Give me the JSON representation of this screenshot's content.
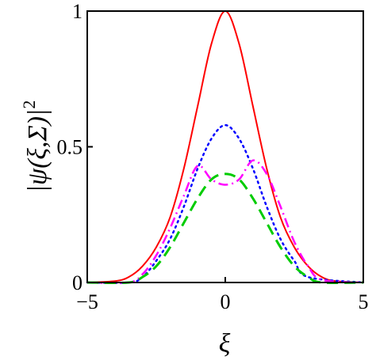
{
  "chart_data": {
    "type": "line",
    "xlabel": "ξ",
    "ylabel": "|ψ(ξ,Σ)|",
    "ylabel_exponent": "2",
    "xlim": [
      -5,
      5
    ],
    "ylim": [
      0,
      1
    ],
    "x_ticks": [
      -5,
      0,
      5
    ],
    "x_tick_labels": [
      "−5",
      "0",
      "5"
    ],
    "y_ticks": [
      0,
      0.5,
      1
    ],
    "y_tick_labels": [
      "0",
      "0.5",
      "1"
    ],
    "grid": false,
    "legend": "none",
    "series": [
      {
        "color": "#ff0000",
        "style": "solid",
        "x": [
          -5,
          -4,
          -3.5,
          -3,
          -2.5,
          -2,
          -1.5,
          -1,
          -0.5,
          0,
          0.5,
          1,
          1.5,
          2,
          2.5,
          3,
          3.5,
          4,
          5
        ],
        "y": [
          0,
          0.005,
          0.02,
          0.06,
          0.13,
          0.24,
          0.42,
          0.65,
          0.88,
          1.0,
          0.88,
          0.65,
          0.42,
          0.24,
          0.13,
          0.06,
          0.02,
          0.005,
          0
        ]
      },
      {
        "color": "#0000ff",
        "style": "dotted",
        "x": [
          -5,
          -3.5,
          -3,
          -2.5,
          -2,
          -1.5,
          -1,
          -0.5,
          0,
          0.5,
          1,
          1.5,
          2,
          2.5,
          3,
          5
        ],
        "y": [
          0,
          0,
          0.02,
          0.08,
          0.16,
          0.28,
          0.42,
          0.53,
          0.58,
          0.53,
          0.42,
          0.28,
          0.16,
          0.08,
          0.02,
          0
        ]
      },
      {
        "color": "#ff00ff",
        "style": "dashdot",
        "x": [
          -5,
          -3.5,
          -3,
          -2.5,
          -2,
          -1.5,
          -1,
          -0.5,
          0,
          0.5,
          1,
          1.5,
          2,
          2.5,
          3,
          3.5,
          5
        ],
        "y": [
          0,
          0,
          0.03,
          0.1,
          0.2,
          0.32,
          0.43,
          0.38,
          0.36,
          0.38,
          0.45,
          0.4,
          0.28,
          0.15,
          0.06,
          0.01,
          0
        ]
      },
      {
        "color": "#00cc00",
        "style": "dashed",
        "x": [
          -5,
          -3.5,
          -3,
          -2.5,
          -2,
          -1.5,
          -1,
          -0.5,
          0,
          0.5,
          1,
          1.5,
          2,
          2.5,
          3,
          3.5,
          5
        ],
        "y": [
          0,
          0,
          0.02,
          0.06,
          0.13,
          0.22,
          0.31,
          0.38,
          0.4,
          0.38,
          0.31,
          0.22,
          0.13,
          0.06,
          0.02,
          0,
          0
        ]
      }
    ]
  }
}
